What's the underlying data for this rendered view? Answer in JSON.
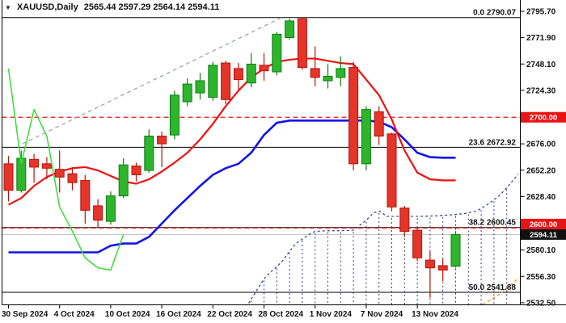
{
  "window": {
    "dropdown_icon": "▼",
    "symbol_period": "XAUUSD,Daily",
    "ohlc_text": "2565.44 2597.29 2564.14 2594.11"
  },
  "colors": {
    "bull_body": "#2db52d",
    "bull_edge": "#0f7d0f",
    "bear_body": "#e5342a",
    "bear_edge": "#b5150c",
    "tenkan_red": "#ef1010",
    "kijun_blue": "#1414e8",
    "chikou_green": "#35df35",
    "cloud_navy": "#333a85",
    "span_orange": "#efa23c",
    "trendline_gray": "#95a0ad",
    "level_red": "#e81414",
    "current_price_gray": "#c4c4c4",
    "axis_black": "#000000",
    "badge_red": "#e81414",
    "badge_black": "#111111"
  },
  "chart_data": {
    "type": "candlestick",
    "symbol": "XAUUSD",
    "timeframe": "Daily",
    "ylim": [
      2527,
      2801
    ],
    "grid": false,
    "y_ticks": [
      {
        "label": "2795.70",
        "price": 2795.7
      },
      {
        "label": "2771.90",
        "price": 2771.9
      },
      {
        "label": "2748.10",
        "price": 2748.1
      },
      {
        "label": "2724.30",
        "price": 2724.3
      },
      {
        "label": "2676.00",
        "price": 2676.0
      },
      {
        "label": "2652.20",
        "price": 2652.2
      },
      {
        "label": "2628.40",
        "price": 2628.4
      },
      {
        "label": "2580.10",
        "price": 2580.1
      },
      {
        "label": "2556.30",
        "price": 2556.3
      },
      {
        "label": "2532.50",
        "price": 2532.5
      }
    ],
    "x_labels": [
      {
        "text": "30 Sep 2024",
        "bar": 0
      },
      {
        "text": "4 Oct 2024",
        "bar": 4
      },
      {
        "text": "10 Oct 2024",
        "bar": 8
      },
      {
        "text": "16 Oct 2024",
        "bar": 12
      },
      {
        "text": "22 Oct 2024",
        "bar": 16
      },
      {
        "text": "28 Oct 2024",
        "bar": 20
      },
      {
        "text": "1 Nov 2024",
        "bar": 24
      },
      {
        "text": "7 Nov 2024",
        "bar": 28
      },
      {
        "text": "13 Nov 2024",
        "bar": 32
      }
    ],
    "price_badges": [
      {
        "label": "2700.00",
        "price": 2700.0,
        "bg": "#e81414",
        "fg": "#ffffff"
      },
      {
        "label": "2600.00",
        "price": 2600.0,
        "bg": "#e81414",
        "fg": "#ffffff"
      },
      {
        "label": "2594.11",
        "price": 2594.11,
        "bg": "#111111",
        "fg": "#ffffff"
      }
    ],
    "fib_levels": [
      {
        "label": "0.0 2790.07",
        "price": 2790.07
      },
      {
        "label": "23.6 2672.92",
        "price": 2672.92
      },
      {
        "label": "38.2 2600.45",
        "price": 2600.45
      },
      {
        "label": "50.0 2541.88",
        "price": 2541.88
      }
    ],
    "hlines": [
      {
        "price": 2700.0,
        "color": "#e81414",
        "dash": "6,4",
        "width": 1.2
      },
      {
        "price": 2600.0,
        "color": "#e81414",
        "dash": "6,4",
        "width": 1.2
      },
      {
        "price": 2594.11,
        "color": "#c4c4c4",
        "dash": "",
        "width": 1.2
      }
    ],
    "candles": [
      [
        2658,
        2665,
        2624,
        2634
      ],
      [
        2634,
        2670,
        2632,
        2663
      ],
      [
        2662,
        2667,
        2641,
        2655
      ],
      [
        2658,
        2664,
        2644,
        2654
      ],
      [
        2653,
        2670,
        2632,
        2646
      ],
      [
        2649,
        2655,
        2634,
        2641
      ],
      [
        2643,
        2648,
        2604,
        2616
      ],
      [
        2620,
        2626,
        2600,
        2607
      ],
      [
        2606,
        2633,
        2603,
        2629
      ],
      [
        2629,
        2663,
        2627,
        2657
      ],
      [
        2656,
        2659,
        2642,
        2648
      ],
      [
        2652,
        2689,
        2650,
        2683
      ],
      [
        2683,
        2687,
        2655,
        2676
      ],
      [
        2684,
        2724,
        2680,
        2720
      ],
      [
        2714,
        2735,
        2710,
        2730
      ],
      [
        2722,
        2740,
        2716,
        2733
      ],
      [
        2718,
        2750,
        2715,
        2747
      ],
      [
        2749,
        2751,
        2712,
        2716
      ],
      [
        2744,
        2749,
        2725,
        2734
      ],
      [
        2731,
        2758,
        2727,
        2748
      ],
      [
        2747,
        2758,
        2733,
        2742
      ],
      [
        2741,
        2777,
        2738,
        2775
      ],
      [
        2772,
        2789,
        2770,
        2787
      ],
      [
        2789,
        2790,
        2743,
        2745
      ],
      [
        2744,
        2764,
        2728,
        2736
      ],
      [
        2733,
        2748,
        2726,
        2737
      ],
      [
        2736,
        2755,
        2728,
        2744
      ],
      [
        2745,
        2750,
        2652,
        2658
      ],
      [
        2658,
        2710,
        2652,
        2707
      ],
      [
        2705,
        2710,
        2675,
        2683
      ],
      [
        2685,
        2686,
        2615,
        2619
      ],
      [
        2618,
        2620,
        2592,
        2597
      ],
      [
        2598,
        2600,
        2570,
        2573
      ],
      [
        2571,
        2579,
        2537,
        2564
      ],
      [
        2566,
        2572,
        2552,
        2562
      ],
      [
        2565.44,
        2597.29,
        2564.14,
        2594.11
      ]
    ],
    "tenkan": {
      "name": "tenkan-sen",
      "values": [
        2621,
        2627,
        2638,
        2646,
        2651,
        2654,
        2655,
        2652,
        2647,
        2642,
        2640,
        2644,
        2651,
        2659,
        2668,
        2680,
        2694,
        2710,
        2724,
        2736,
        2744,
        2750,
        2752,
        2753,
        2753,
        2751,
        2749,
        2748,
        2734,
        2720,
        2698,
        2670,
        2650,
        2644,
        2643,
        2643
      ]
    },
    "kijun": {
      "name": "kijun-sen",
      "values": [
        2578,
        2578,
        2578,
        2578,
        2578,
        2578,
        2578,
        2578,
        2584,
        2586,
        2586,
        2592,
        2604,
        2616,
        2627,
        2638,
        2648,
        2654,
        2658,
        2668,
        2684,
        2695,
        2697,
        2697,
        2697,
        2697,
        2697,
        2697,
        2697,
        2696,
        2691,
        2680,
        2668,
        2664,
        2663.5,
        2663.5
      ]
    },
    "chikou": {
      "name": "chikou-span",
      "lag": 26
    },
    "cloud": {
      "upper": [
        [
          18.8,
          2532
        ],
        [
          19.5,
          2545
        ],
        [
          20,
          2554
        ],
        [
          20.5,
          2560
        ],
        [
          21,
          2565
        ],
        [
          21.5,
          2571
        ],
        [
          22,
          2579
        ],
        [
          22.5,
          2586
        ],
        [
          23,
          2590
        ],
        [
          23.5,
          2594
        ],
        [
          24,
          2597
        ],
        [
          25,
          2597.5
        ],
        [
          26,
          2597.5
        ],
        [
          27,
          2598
        ],
        [
          28,
          2607
        ],
        [
          28.6,
          2614
        ],
        [
          29.1,
          2615
        ],
        [
          29.6,
          2610.5
        ],
        [
          31,
          2610.5
        ],
        [
          32.3,
          2610.5
        ],
        [
          33.5,
          2611
        ],
        [
          34.8,
          2612
        ],
        [
          35.7,
          2613
        ],
        [
          36.7,
          2615.5
        ],
        [
          37.6,
          2622
        ],
        [
          38.5,
          2630
        ],
        [
          39.2,
          2639
        ],
        [
          39.9,
          2648.5
        ]
      ],
      "orange": [
        [
          37.1,
          2531
        ],
        [
          37.8,
          2535.5
        ],
        [
          38.5,
          2540.5
        ],
        [
          39.1,
          2546.5
        ],
        [
          39.6,
          2551.5
        ],
        [
          39.97,
          2555
        ]
      ],
      "hatch_from": 19,
      "hatch_to": 39
    },
    "trendline": {
      "from": [
        1.1,
        2676
      ],
      "to": [
        21.6,
        2791.3
      ]
    }
  }
}
